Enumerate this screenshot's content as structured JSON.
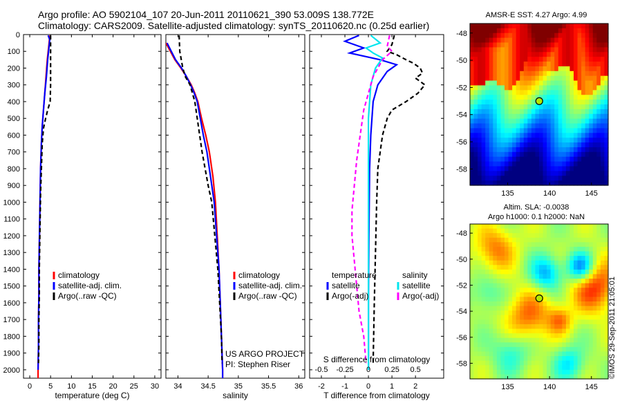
{
  "header": {
    "line1": "Argo profile: AO 5902104_107 20-Jun-2011 20110621_390 53.009S 138.772E",
    "line2": "Climatology: CARS2009. Satellite-adjusted climatology: synTS_20110620.nc (0.25d earlier)"
  },
  "chart_data": [
    {
      "type": "line",
      "id": "temperature",
      "xlabel": "temperature (deg C)",
      "ylabel": "",
      "xlim": [
        -1.5,
        31.5
      ],
      "ylim": [
        2050,
        0
      ],
      "xticks": [
        0,
        5,
        10,
        15,
        20,
        25,
        30
      ],
      "yticks": [
        0,
        100,
        200,
        300,
        400,
        500,
        600,
        700,
        800,
        900,
        1000,
        1100,
        1200,
        1300,
        1400,
        1500,
        1600,
        1700,
        1800,
        1900,
        2000
      ],
      "legend": [
        "climatology",
        "satellite-adj. clim.",
        "Argo(..raw -QC)"
      ],
      "series": [
        {
          "name": "climatology",
          "color": "#ff0000",
          "style": "solid",
          "x": [
            4.8,
            4.6,
            4.2,
            3.9,
            3.6,
            3.3,
            3.0,
            2.8,
            2.6,
            2.5,
            2.4,
            2.3,
            2.2,
            2.2,
            2.1,
            2.1,
            2.0,
            2.0
          ],
          "y": [
            5,
            60,
            150,
            250,
            350,
            450,
            550,
            650,
            800,
            950,
            1100,
            1250,
            1400,
            1550,
            1700,
            1850,
            2000,
            2050
          ]
        },
        {
          "name": "satellite-adj. clim.",
          "color": "#0000ff",
          "style": "solid",
          "x": [
            4.4,
            4.8,
            4.3,
            4.0,
            3.6,
            3.3,
            3.0,
            2.8,
            2.6,
            2.5,
            2.4,
            2.3,
            2.2,
            2.2,
            2.1,
            2.1,
            2.0
          ],
          "y": [
            5,
            30,
            150,
            250,
            350,
            450,
            550,
            650,
            800,
            950,
            1100,
            1250,
            1400,
            1550,
            1700,
            1850,
            2000
          ]
        },
        {
          "name": "Argo(..raw -QC)",
          "color": "#000000",
          "style": "dashed",
          "x": [
            5.0,
            5.0,
            5.0,
            5.0,
            4.9,
            4.3,
            3.8,
            3.3,
            3.0,
            2.8,
            2.6,
            2.5,
            2.4,
            2.3,
            2.3,
            2.2,
            2.2,
            2.1
          ],
          "y": [
            5,
            100,
            200,
            300,
            400,
            450,
            500,
            560,
            650,
            800,
            950,
            1100,
            1250,
            1400,
            1550,
            1700,
            1850,
            1960
          ]
        }
      ]
    },
    {
      "type": "line",
      "id": "salinity",
      "xlabel": "salinity",
      "xlim": [
        33.8,
        36.1
      ],
      "ylim": [
        2050,
        0
      ],
      "xticks": [
        34,
        34.5,
        35,
        35.5,
        36
      ],
      "legend": [
        "climatology",
        "satellite-adj. clim.",
        "Argo(..raw -QC)"
      ],
      "annotation": [
        "US ARGO PROJECT",
        "PI: Stephen Riser"
      ],
      "series": [
        {
          "name": "climatology",
          "color": "#ff0000",
          "style": "solid",
          "x": [
            33.8,
            33.95,
            34.05,
            34.14,
            34.22,
            34.28,
            34.33,
            34.39,
            34.46,
            34.52,
            34.58,
            34.62,
            34.65,
            34.68,
            34.7,
            34.72,
            34.74,
            34.74
          ],
          "y": [
            50,
            150,
            200,
            250,
            300,
            350,
            400,
            500,
            600,
            700,
            850,
            1000,
            1200,
            1400,
            1600,
            1800,
            2000,
            2050
          ]
        },
        {
          "name": "satellite-adj. clim.",
          "color": "#0000ff",
          "style": "solid",
          "x": [
            33.82,
            33.96,
            34.06,
            34.14,
            34.21,
            34.27,
            34.32,
            34.37,
            34.42,
            34.48,
            34.54,
            34.6,
            34.64,
            34.68,
            34.7,
            34.72,
            34.74,
            34.74
          ],
          "y": [
            50,
            150,
            200,
            250,
            300,
            350,
            400,
            500,
            600,
            700,
            850,
            1000,
            1200,
            1400,
            1600,
            1800,
            2000,
            2050
          ]
        },
        {
          "name": "Argo(..raw -QC)",
          "color": "#000000",
          "style": "dashed",
          "x": [
            34.02,
            34.03,
            34.08,
            34.12,
            34.2,
            34.28,
            34.32,
            34.36,
            34.4,
            34.45,
            34.5,
            34.56,
            34.61,
            34.66,
            34.69,
            34.72,
            34.73
          ],
          "y": [
            5,
            100,
            200,
            250,
            300,
            400,
            500,
            600,
            700,
            800,
            900,
            1000,
            1200,
            1400,
            1600,
            1800,
            1960
          ]
        }
      ]
    },
    {
      "type": "line",
      "id": "difference",
      "xlabel": "T difference from climatology",
      "xlabel_top": "S difference from climatology",
      "xlim": [
        -2.5,
        3.2
      ],
      "ylim": [
        2050,
        0
      ],
      "xticks": [
        -2,
        -1,
        0,
        1,
        2
      ],
      "xticks_s": [
        -0.5,
        -0.25,
        0,
        0.25,
        0.5
      ],
      "legend_t": {
        "title": "temperature",
        "items": [
          "satellite",
          "Argo(-adj)"
        ]
      },
      "legend_s": {
        "title": "salinity",
        "items": [
          "satellite",
          "Argo(-adj)"
        ]
      },
      "series": [
        {
          "name": "satellite",
          "group": "temperature",
          "color": "#0000ff",
          "style": "solid",
          "x": [
            -0.4,
            -1.0,
            -0.2,
            -0.8,
            0.5,
            1.2,
            0.8,
            0.6,
            0.4,
            0.2,
            0.1,
            0.05,
            0.02,
            0.0,
            0.0
          ],
          "y": [
            5,
            40,
            80,
            110,
            150,
            180,
            220,
            260,
            300,
            400,
            600,
            800,
            1200,
            1600,
            2000
          ]
        },
        {
          "name": "Argo(-adj)",
          "group": "temperature",
          "color": "#000000",
          "style": "dashed",
          "x": [
            1.1,
            1.0,
            0.8,
            1.2,
            1.6,
            1.9,
            2.2,
            2.3,
            2.0,
            2.4,
            2.1,
            1.6,
            1.0,
            0.8,
            0.6,
            0.5,
            0.4,
            0.35,
            0.3,
            0.25,
            0.2
          ],
          "y": [
            5,
            60,
            100,
            120,
            150,
            170,
            200,
            230,
            260,
            300,
            350,
            400,
            450,
            500,
            600,
            700,
            800,
            1000,
            1300,
            1600,
            1960
          ]
        },
        {
          "name": "satellite",
          "group": "salinity",
          "color": "#00e5ee",
          "style": "solid",
          "x": [
            0.1,
            0.5,
            -0.1,
            0.2,
            0.6,
            0.3,
            0.1,
            0.0,
            0.0,
            0.0
          ],
          "y": [
            5,
            50,
            80,
            110,
            140,
            200,
            300,
            500,
            1000,
            2000
          ]
        },
        {
          "name": "Argo(-adj)",
          "group": "salinity",
          "color": "#ff00ff",
          "style": "dashed",
          "x": [
            0.9,
            0.8,
            1.0,
            0.6,
            0.2,
            0.0,
            -0.2,
            -0.3,
            -0.4,
            -0.5,
            -0.6,
            -0.7,
            -0.7,
            -0.6,
            -0.5,
            -0.4,
            -0.2,
            -0.1
          ],
          "y": [
            5,
            70,
            100,
            150,
            250,
            350,
            450,
            550,
            650,
            750,
            900,
            1050,
            1200,
            1350,
            1500,
            1650,
            1800,
            1960
          ]
        }
      ]
    },
    {
      "type": "heatmap",
      "id": "sst-map",
      "title": "AMSR-E SST: 4.27  Argo: 4.99",
      "xlim": [
        130.5,
        147
      ],
      "ylim": [
        -59.2,
        -47.3
      ],
      "xticks": [
        135,
        140,
        145
      ],
      "yticks": [
        -48,
        -50,
        -52,
        -54,
        -56,
        -58
      ],
      "marker": {
        "lon": 138.772,
        "lat": -53.009
      }
    },
    {
      "type": "heatmap",
      "id": "sla-map",
      "title": [
        "Altim. SLA: -0.0038",
        "Argo h1000: 0.1  h2000: NaN"
      ],
      "xlim": [
        130.5,
        147
      ],
      "ylim": [
        -59.2,
        -47.3
      ],
      "xticks": [
        135,
        140,
        145
      ],
      "yticks": [
        -48,
        -50,
        -52,
        -54,
        -56,
        -58
      ],
      "marker": {
        "lon": 138.772,
        "lat": -53.009
      }
    }
  ],
  "footer": {
    "credit": "©IMOS 29-Sep-2011 21:05:01"
  }
}
